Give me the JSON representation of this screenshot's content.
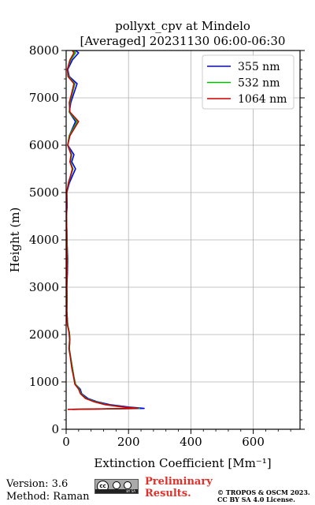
{
  "chart_data": {
    "type": "line",
    "title_line1": "pollyxt_cpv at Mindelo",
    "title_line2": "[Averaged] 20231130 06:00-06:30",
    "xlabel": "Extinction Coefficient [Mm⁻¹]",
    "ylabel": "Height (m)",
    "xlim": [
      0,
      750
    ],
    "ylim": [
      0,
      8000
    ],
    "xticks": [
      0,
      200,
      400,
      600
    ],
    "yticks": [
      0,
      1000,
      2000,
      3000,
      4000,
      5000,
      6000,
      7000,
      8000
    ],
    "grid": true,
    "legend_position": "top-right",
    "series": [
      {
        "name": "355 nm",
        "color": "#0000ff",
        "points": [
          [
            20,
            420
          ],
          [
            250,
            440
          ],
          [
            200,
            470
          ],
          [
            140,
            520
          ],
          [
            100,
            580
          ],
          [
            70,
            650
          ],
          [
            50,
            750
          ],
          [
            45,
            850
          ],
          [
            30,
            950
          ],
          [
            25,
            1100
          ],
          [
            20,
            1300
          ],
          [
            15,
            1500
          ],
          [
            10,
            1700
          ],
          [
            12,
            1900
          ],
          [
            10,
            2050
          ],
          [
            5,
            2200
          ],
          [
            2,
            2500
          ],
          [
            3,
            2800
          ],
          [
            2,
            3000
          ],
          [
            4,
            3300
          ],
          [
            5,
            3600
          ],
          [
            3,
            3900
          ],
          [
            2,
            4200
          ],
          [
            1,
            4500
          ],
          [
            3,
            4700
          ],
          [
            2,
            5000
          ],
          [
            10,
            5200
          ],
          [
            20,
            5350
          ],
          [
            30,
            5500
          ],
          [
            18,
            5650
          ],
          [
            25,
            5800
          ],
          [
            5,
            6000
          ],
          [
            10,
            6200
          ],
          [
            30,
            6500
          ],
          [
            10,
            6700
          ],
          [
            15,
            6900
          ],
          [
            25,
            7100
          ],
          [
            35,
            7300
          ],
          [
            10,
            7450
          ],
          [
            5,
            7600
          ],
          [
            20,
            7800
          ],
          [
            40,
            7950
          ],
          [
            30,
            8000
          ]
        ]
      },
      {
        "name": "532 nm",
        "color": "#00bb00",
        "points": [
          [
            20,
            420
          ],
          [
            235,
            440
          ],
          [
            185,
            470
          ],
          [
            130,
            520
          ],
          [
            95,
            580
          ],
          [
            65,
            650
          ],
          [
            48,
            750
          ],
          [
            42,
            850
          ],
          [
            30,
            950
          ],
          [
            25,
            1100
          ],
          [
            20,
            1300
          ],
          [
            15,
            1500
          ],
          [
            10,
            1700
          ],
          [
            12,
            1900
          ],
          [
            10,
            2050
          ],
          [
            5,
            2200
          ],
          [
            2,
            2500
          ],
          [
            3,
            2800
          ],
          [
            2,
            3000
          ],
          [
            3,
            3300
          ],
          [
            4,
            3600
          ],
          [
            3,
            3900
          ],
          [
            2,
            4200
          ],
          [
            1,
            4500
          ],
          [
            2,
            4700
          ],
          [
            2,
            5000
          ],
          [
            8,
            5200
          ],
          [
            15,
            5350
          ],
          [
            22,
            5500
          ],
          [
            14,
            5650
          ],
          [
            18,
            5800
          ],
          [
            5,
            6000
          ],
          [
            10,
            6200
          ],
          [
            35,
            6500
          ],
          [
            10,
            6700
          ],
          [
            12,
            6900
          ],
          [
            20,
            7100
          ],
          [
            28,
            7300
          ],
          [
            8,
            7450
          ],
          [
            4,
            7600
          ],
          [
            15,
            7800
          ],
          [
            30,
            7950
          ],
          [
            25,
            8000
          ]
        ]
      },
      {
        "name": "1064 nm",
        "color": "#cc0000",
        "points": [
          [
            5,
            420
          ],
          [
            230,
            440
          ],
          [
            180,
            470
          ],
          [
            125,
            520
          ],
          [
            90,
            580
          ],
          [
            62,
            650
          ],
          [
            46,
            750
          ],
          [
            40,
            850
          ],
          [
            28,
            950
          ],
          [
            24,
            1100
          ],
          [
            18,
            1300
          ],
          [
            14,
            1500
          ],
          [
            9,
            1700
          ],
          [
            11,
            1900
          ],
          [
            9,
            2050
          ],
          [
            4,
            2200
          ],
          [
            2,
            2500
          ],
          [
            2,
            2800
          ],
          [
            2,
            3000
          ],
          [
            3,
            3300
          ],
          [
            3,
            3600
          ],
          [
            2,
            3900
          ],
          [
            2,
            4200
          ],
          [
            1,
            4500
          ],
          [
            2,
            4700
          ],
          [
            2,
            5000
          ],
          [
            7,
            5200
          ],
          [
            14,
            5350
          ],
          [
            20,
            5500
          ],
          [
            12,
            5650
          ],
          [
            16,
            5800
          ],
          [
            5,
            6000
          ],
          [
            12,
            6200
          ],
          [
            40,
            6500
          ],
          [
            12,
            6700
          ],
          [
            10,
            6900
          ],
          [
            18,
            7100
          ],
          [
            25,
            7300
          ],
          [
            6,
            7450
          ],
          [
            4,
            7600
          ],
          [
            12,
            7800
          ],
          [
            25,
            7950
          ],
          [
            20,
            8000
          ]
        ]
      }
    ]
  },
  "footer": {
    "version": "Version: 3.6",
    "method": "Method: Raman",
    "preliminary_line1": "Preliminary",
    "preliminary_line2": "Results.",
    "copyright_line1": "© TROPOS & OSCM 2023.",
    "copyright_line2": "CC BY SA 4.0 License.",
    "license_badge_icon": "cc-by-sa-icon"
  }
}
